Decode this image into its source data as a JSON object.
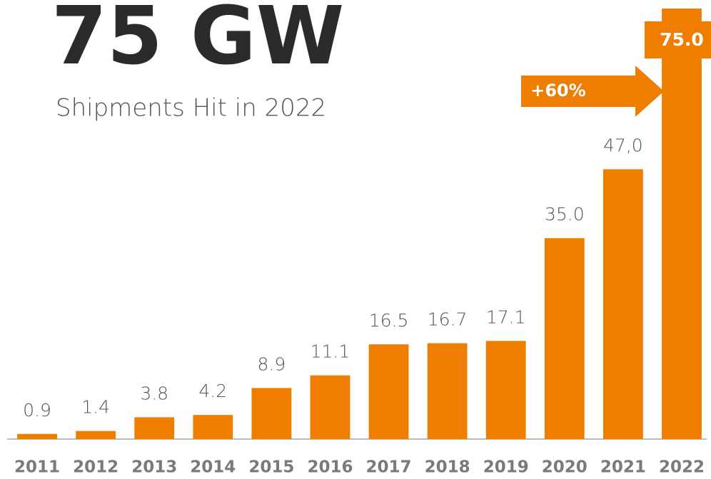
{
  "chart_data": {
    "type": "bar",
    "title": "75 GW",
    "subtitle": "Shipments Hit in 2022",
    "annotation": "+60%",
    "categories": [
      "2011",
      "2012",
      "2013",
      "2014",
      "2015",
      "2016",
      "2017",
      "2018",
      "2019",
      "2020",
      "2021",
      "2022"
    ],
    "values": [
      0.9,
      1.4,
      3.8,
      4.2,
      8.9,
      11.1,
      16.5,
      16.7,
      17.1,
      35.0,
      47.0,
      75.0
    ],
    "value_labels": [
      "0.9",
      "1.4",
      "3.8",
      "4.2",
      "8.9",
      "11.1",
      "16.5",
      "16.7",
      "17.1",
      "35.0",
      "47,0",
      "75.0"
    ],
    "color": "#ef7d00",
    "ylim": [
      0,
      75
    ]
  }
}
